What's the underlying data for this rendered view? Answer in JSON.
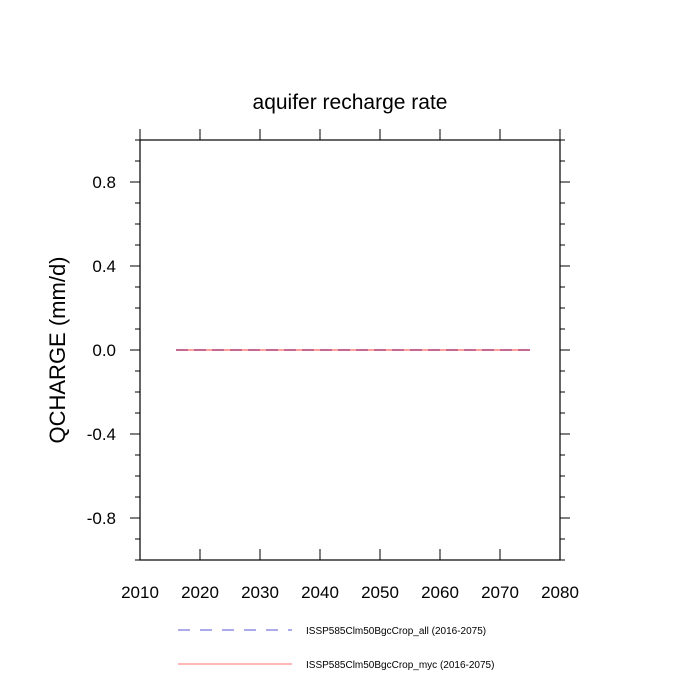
{
  "chart_data": {
    "type": "line",
    "title": "aquifer recharge rate",
    "xlabel": "",
    "ylabel": "QCHARGE  (mm/d)",
    "xlim": [
      2010,
      2080
    ],
    "ylim": [
      -1.0,
      1.0
    ],
    "x_ticks": [
      2010,
      2020,
      2030,
      2040,
      2050,
      2060,
      2070,
      2080
    ],
    "x_tick_labels": [
      "2010",
      "2020",
      "2030",
      "2040",
      "2050",
      "2060",
      "2070",
      "2080"
    ],
    "y_ticks": [
      -0.8,
      -0.4,
      0.0,
      0.4,
      0.8
    ],
    "y_tick_labels": [
      "-0.8",
      "-0.4",
      "0.0",
      "0.4",
      "0.8"
    ],
    "grid": false,
    "legend_position": "bottom",
    "series": [
      {
        "name": "ISSP585Clm50BgcCrop_all (2016-2075)",
        "color": "#2020cc",
        "style": "dashed",
        "x": [
          2016,
          2075
        ],
        "y": [
          0.0,
          0.0
        ]
      },
      {
        "name": "ISSP585Clm50BgcCrop_myc (2016-2075)",
        "color": "#ff4040",
        "style": "solid",
        "x": [
          2016,
          2075
        ],
        "y": [
          0.0,
          0.0
        ]
      }
    ]
  }
}
